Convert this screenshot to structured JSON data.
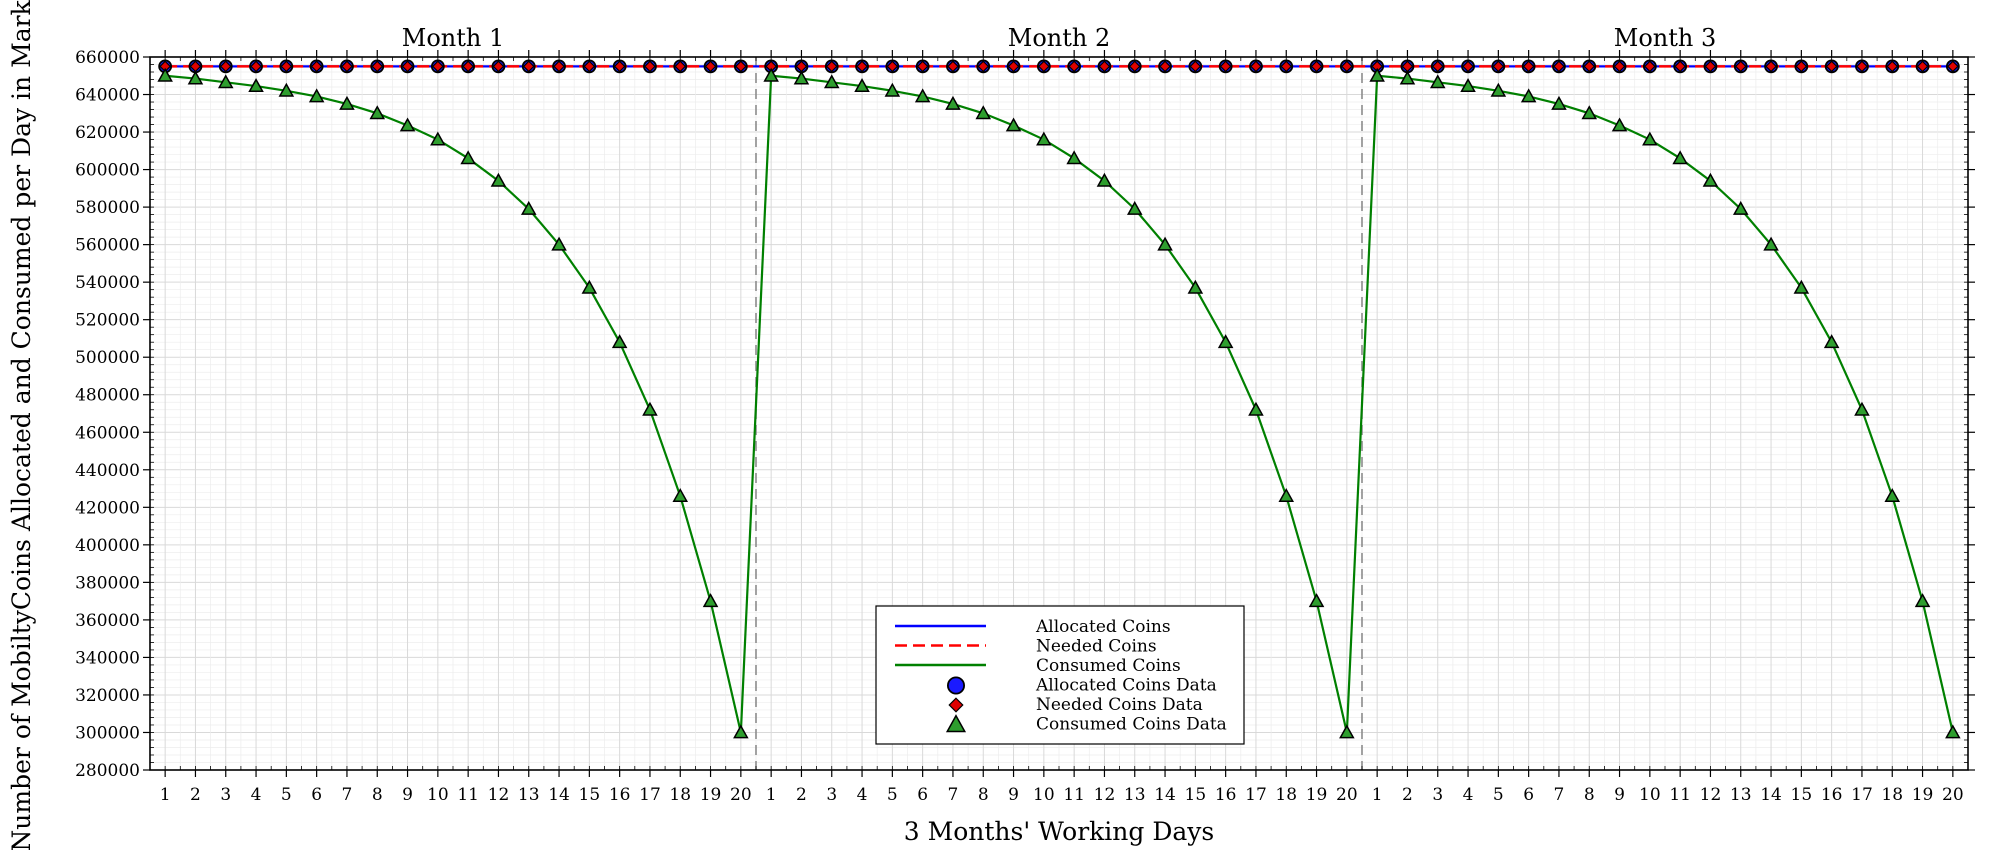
{
  "chart_data": {
    "type": "line",
    "xlabel": "3 Months' Working Days",
    "ylabel": "Number of MobiltyCoins Allocated and Consumed per Day in Market",
    "ylim": [
      280000,
      660000
    ],
    "yticks": [
      280000,
      300000,
      320000,
      340000,
      360000,
      380000,
      400000,
      420000,
      440000,
      460000,
      480000,
      500000,
      520000,
      540000,
      560000,
      580000,
      600000,
      620000,
      640000,
      660000
    ],
    "months": [
      "Month 1",
      "Month 2",
      "Month 3"
    ],
    "days_per_month": 20,
    "x_tick_labels": [
      "1",
      "2",
      "3",
      "4",
      "5",
      "6",
      "7",
      "8",
      "9",
      "10",
      "11",
      "12",
      "13",
      "14",
      "15",
      "16",
      "17",
      "18",
      "19",
      "20"
    ],
    "grid": true,
    "month_separators": "dashed vertical lines",
    "legend_position": "lower-center",
    "series": [
      {
        "name": "Allocated Coins",
        "marker_name": "Allocated Coins Data",
        "style": "solid",
        "marker": "circle",
        "color": "#0000ff",
        "marker_fill": "#1a1aff",
        "values_per_month": [
          655000,
          655000,
          655000,
          655000,
          655000,
          655000,
          655000,
          655000,
          655000,
          655000,
          655000,
          655000,
          655000,
          655000,
          655000,
          655000,
          655000,
          655000,
          655000,
          655000
        ]
      },
      {
        "name": "Needed Coins",
        "marker_name": "Needed Coins Data",
        "style": "dashed",
        "marker": "diamond",
        "color": "#ff0000",
        "marker_fill": "#e00000",
        "values_per_month": [
          655000,
          655000,
          655000,
          655000,
          655000,
          655000,
          655000,
          655000,
          655000,
          655000,
          655000,
          655000,
          655000,
          655000,
          655000,
          655000,
          655000,
          655000,
          655000,
          655000
        ]
      },
      {
        "name": "Consumed Coins",
        "marker_name": "Consumed Coins Data",
        "style": "solid",
        "marker": "triangle",
        "color": "#008000",
        "marker_fill": "#2e9e2e",
        "values_per_month": [
          650000,
          648500,
          646500,
          644500,
          642000,
          639000,
          635000,
          630000,
          623500,
          616000,
          606000,
          594000,
          579000,
          560000,
          537000,
          508000,
          472000,
          426000,
          370000,
          300000
        ]
      }
    ]
  }
}
